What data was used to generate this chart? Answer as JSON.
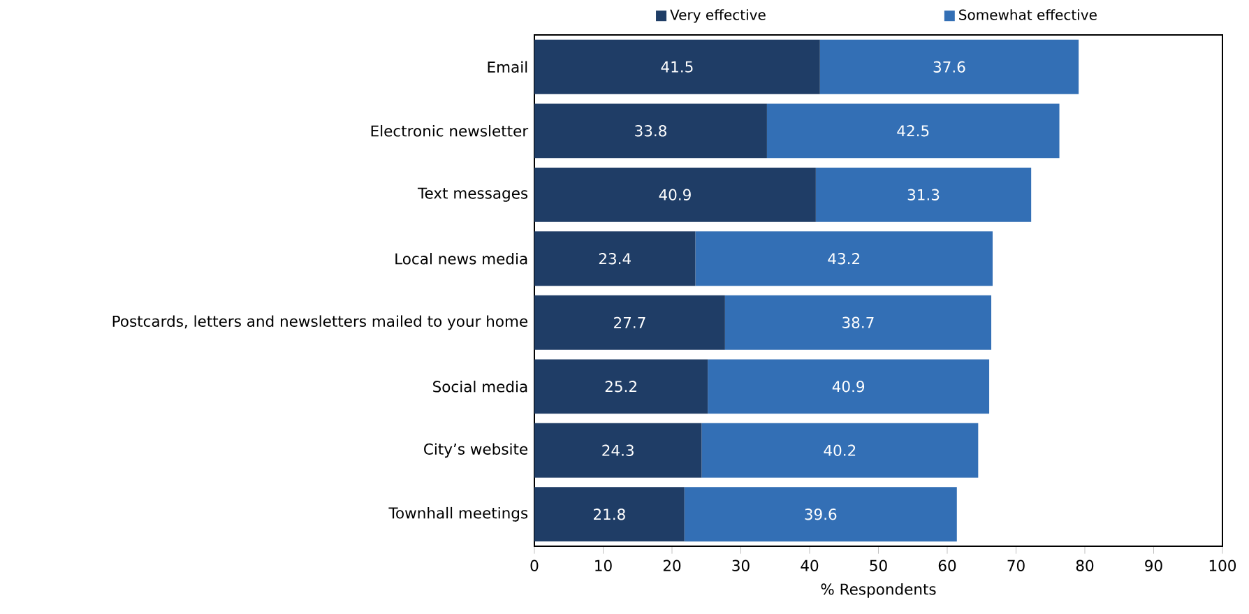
{
  "chart_data": {
    "type": "bar",
    "orientation": "horizontal",
    "stacked": true,
    "xlabel": "% Respondents",
    "categories": [
      "Email",
      "Electronic newsletter",
      "Text messages",
      "Local news media",
      "Postcards, letters and newsletters mailed to your home",
      "Social media",
      "City’s website",
      "Townhall meetings"
    ],
    "series": [
      {
        "name": "Very effective",
        "color": "#1f3d66",
        "values": [
          41.5,
          33.8,
          40.9,
          23.4,
          27.7,
          25.2,
          24.3,
          21.8
        ]
      },
      {
        "name": "Somewhat effective",
        "color": "#336fb5",
        "values": [
          37.6,
          42.5,
          31.3,
          43.2,
          38.7,
          40.9,
          40.2,
          39.6
        ]
      }
    ],
    "xlim": [
      0,
      100
    ],
    "xticks": [
      0,
      10,
      20,
      30,
      40,
      50,
      60,
      70,
      80,
      90,
      100
    ],
    "data_labels": true,
    "legend": "top",
    "grid": false
  }
}
